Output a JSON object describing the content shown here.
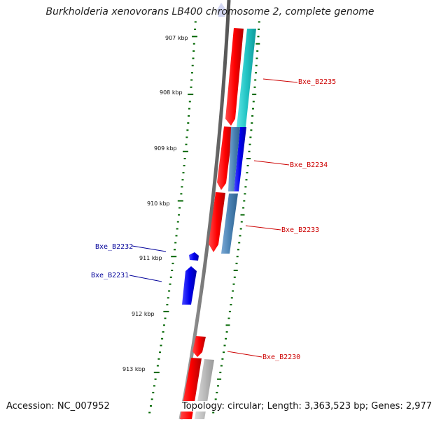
{
  "title": "Burkholderia xenovorans LB400 chromosome 2, complete genome",
  "footer": {
    "accession": "Accession: NC_007952",
    "summary": "Topology: circular; Length: 3,363,523 bp; Genes: 2,977"
  },
  "ticks": [
    {
      "label": "907 kbp",
      "kbp": 907
    },
    {
      "label": "908 kbp",
      "kbp": 908
    },
    {
      "label": "909 kbp",
      "kbp": 909
    },
    {
      "label": "910 kbp",
      "kbp": 910
    },
    {
      "label": "911 kbp",
      "kbp": 911
    },
    {
      "label": "912 kbp",
      "kbp": 912
    },
    {
      "label": "913 kbp",
      "kbp": 913
    }
  ],
  "genes": [
    {
      "label": "Bxe_B2235",
      "strand": "forward",
      "color": "#cc0000"
    },
    {
      "label": "Bxe_B2234",
      "strand": "forward",
      "color": "#cc0000"
    },
    {
      "label": "Bxe_B2233",
      "strand": "forward",
      "color": "#cc0000"
    },
    {
      "label": "Bxe_B2232",
      "strand": "reverse",
      "color": "#000099"
    },
    {
      "label": "Bxe_B2231",
      "strand": "reverse",
      "color": "#000099"
    },
    {
      "label": "Bxe_B2230",
      "strand": "forward",
      "color": "#cc0000"
    }
  ],
  "colors": {
    "cds": "#ff0000",
    "reverse_cds": "#0000ff",
    "tick": "#006600",
    "backbone": "#777777"
  }
}
